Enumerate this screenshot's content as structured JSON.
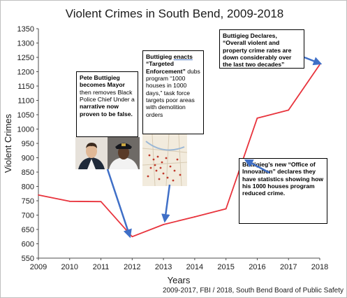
{
  "chart_data": {
    "type": "line",
    "title": "Violent Crimes in South Bend, 2009-2018",
    "xlabel": "Years",
    "ylabel": "Violent Crimes",
    "x": [
      2009,
      2010,
      2011,
      2012,
      2013,
      2014,
      2015,
      2016,
      2017,
      2018
    ],
    "ylim": [
      550,
      1350
    ],
    "yticks": [
      550,
      600,
      650,
      700,
      750,
      800,
      850,
      900,
      950,
      1000,
      1050,
      1100,
      1150,
      1200,
      1250,
      1300,
      1350
    ],
    "series": [
      {
        "values": [
          770,
          748,
          747,
          625,
          667,
          694,
          722,
          1038,
          1066,
          1225
        ],
        "color": "#e8333c"
      }
    ],
    "grid": false,
    "source": "2009-2017, FBI / 2018, South Bend Board of Public Safety"
  },
  "annotations": {
    "mayor": {
      "bold": "Pete Buttigieg becomes Mayor",
      "text1": " then removes Black Police Chief Under a ",
      "bold2": "narrative now proven to be false.",
      "arrow_color": "#3f6fc7"
    },
    "enforcement": {
      "bold_a": "Buttigieg ",
      "bold_b": "enacts ",
      "bold_c": "“Targeted Enforcement”",
      "text1": " dubs program “1000 houses in 1000 days,” task force targets poor areas with demolition orders"
    },
    "declares": {
      "text": "Buttigieg Declares, “Overall violent and property crime rates are down considerably over the last two decades”"
    },
    "innovation": {
      "text": "Buttigieg’s new “Office of Innovation” declares they have statistics showing how his 1000 houses program reduced crime."
    }
  },
  "images": {
    "mayor_photo": "portrait-photo",
    "chief_photo": "police-chief-photo",
    "map_image": "city-map-image"
  }
}
